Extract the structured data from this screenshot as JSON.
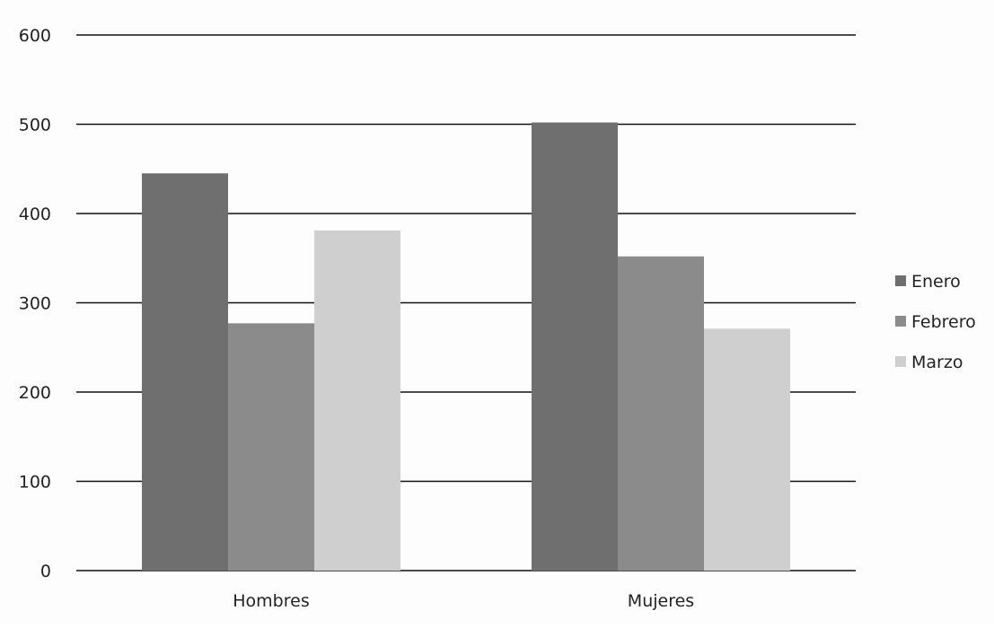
{
  "chart_data": {
    "type": "bar",
    "categories": [
      "Hombres",
      "Mujeres"
    ],
    "series": [
      {
        "name": "Enero",
        "values": [
          445,
          502
        ],
        "color": "#6f6f6f"
      },
      {
        "name": "Febrero",
        "values": [
          277,
          352
        ],
        "color": "#8b8b8b"
      },
      {
        "name": "Marzo",
        "values": [
          381,
          271
        ],
        "color": "#cfcfcf"
      }
    ],
    "ylim": [
      0,
      600
    ],
    "yticks": [
      "0",
      "100",
      "200",
      "300",
      "400",
      "500",
      "600"
    ],
    "grid": true,
    "legend_position": "right"
  }
}
